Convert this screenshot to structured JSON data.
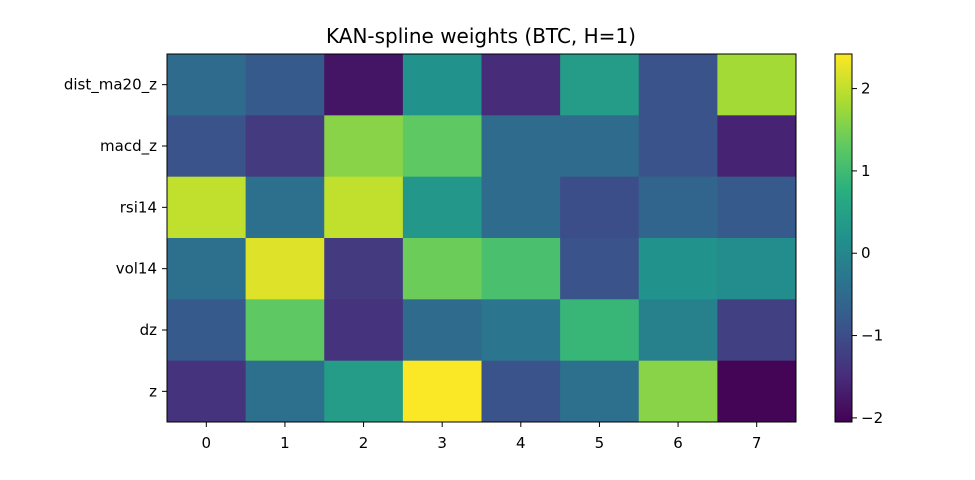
{
  "chart_data": {
    "type": "heatmap",
    "title": "KAN-spline weights (BTC, H=1)",
    "xlabel": "",
    "ylabel": "",
    "x_categories": [
      "0",
      "1",
      "2",
      "3",
      "4",
      "5",
      "6",
      "7"
    ],
    "y_categories": [
      "dist_ma20_z",
      "macd_z",
      "rsi14",
      "vol14",
      "dz",
      "z"
    ],
    "values": [
      [
        -0.5,
        -0.8,
        -1.8,
        0.2,
        -1.5,
        0.4,
        -0.9,
        1.8
      ],
      [
        -0.9,
        -1.3,
        1.6,
        1.3,
        -0.5,
        -0.5,
        -0.9,
        -1.6
      ],
      [
        2.0,
        -0.4,
        2.0,
        0.3,
        -0.5,
        -1.0,
        -0.6,
        -0.8
      ],
      [
        -0.4,
        2.2,
        -1.3,
        1.4,
        1.1,
        -0.9,
        0.2,
        0.1
      ],
      [
        -0.8,
        1.3,
        -1.4,
        -0.5,
        -0.3,
        0.9,
        -0.1,
        -1.2
      ],
      [
        -1.4,
        -0.4,
        0.4,
        2.4,
        -0.9,
        -0.4,
        1.6,
        -2.0
      ]
    ],
    "colormap": "viridis",
    "colorbar": {
      "vmin": -2.05,
      "vmax": 2.42,
      "ticks": [
        2,
        1,
        0,
        -1,
        -2
      ],
      "tick_labels": [
        "2",
        "1",
        "0",
        "−1",
        "−2"
      ]
    },
    "grid": false,
    "legend": "none"
  }
}
